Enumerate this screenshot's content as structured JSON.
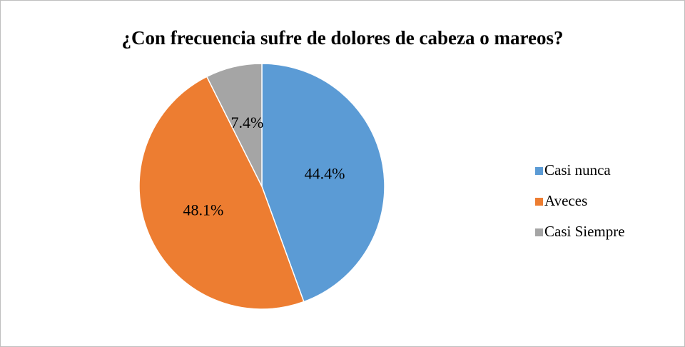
{
  "chart_data": {
    "type": "pie",
    "title": "¿Con frecuencia sufre de dolores de cabeza o mareos?",
    "categories": [
      "Casi nunca",
      "Aveces",
      "Casi Siempre"
    ],
    "values": [
      44.4,
      48.1,
      7.4
    ],
    "value_labels": [
      "44.4%",
      "48.1%",
      "7.4%"
    ],
    "colors": [
      "#5b9bd5",
      "#ed7d31",
      "#a5a5a5"
    ],
    "legend": "right"
  }
}
